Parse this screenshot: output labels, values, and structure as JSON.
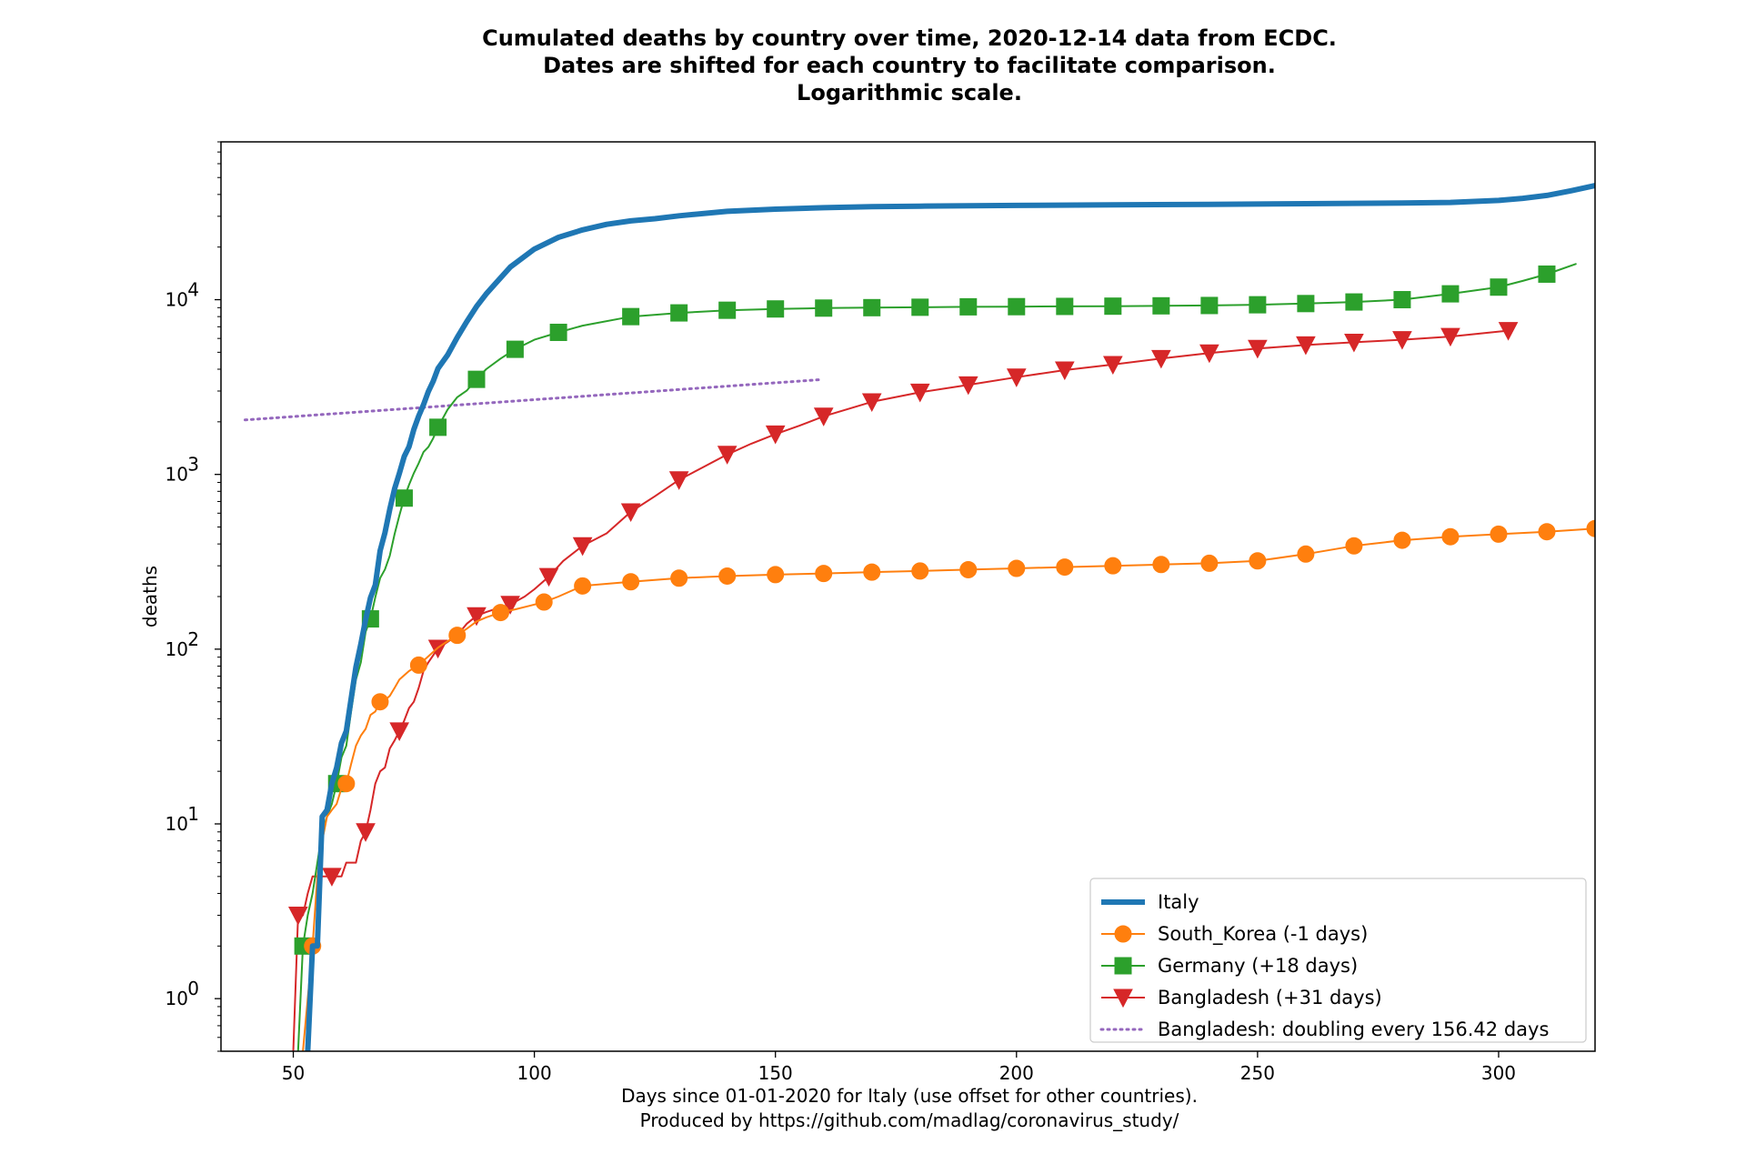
{
  "chart_data": {
    "type": "line",
    "title_lines": [
      "Cumulated deaths by country over time, 2020-12-14 data from ECDC.",
      "Dates are shifted for each country to facilitate comparison.",
      "Logarithmic scale."
    ],
    "xlabel_lines": [
      "Days since 01-01-2020 for Italy (use offset for other countries).",
      "Produced by https://github.com/madlag/coronavirus_study/"
    ],
    "ylabel": "deaths",
    "yscale": "log",
    "xlim": [
      35,
      320
    ],
    "ylim": [
      0.5,
      80000
    ],
    "xticks": [
      50,
      100,
      150,
      200,
      250,
      300
    ],
    "yticks": [
      {
        "value": 1,
        "label": "10^0"
      },
      {
        "value": 10,
        "label": "10^1"
      },
      {
        "value": 100,
        "label": "10^2"
      },
      {
        "value": 1000,
        "label": "10^3"
      },
      {
        "value": 10000,
        "label": "10^4"
      }
    ],
    "grid": false,
    "legend_position": "lower-right",
    "series": [
      {
        "name": "Italy",
        "color": "#1f77b4",
        "style": "thick-line",
        "marker": "none",
        "x": [
          53,
          54,
          55,
          56,
          57,
          58,
          59,
          60,
          61,
          62,
          63,
          64,
          65,
          66,
          67,
          68,
          69,
          70,
          71,
          72,
          73,
          74,
          75,
          76,
          77,
          78,
          79,
          80,
          82,
          84,
          86,
          88,
          90,
          92,
          95,
          100,
          105,
          110,
          115,
          120,
          125,
          130,
          140,
          150,
          160,
          170,
          180,
          200,
          220,
          240,
          260,
          280,
          290,
          300,
          305,
          310,
          315,
          320
        ],
        "y": [
          0.5,
          2,
          2,
          11,
          12,
          17,
          21,
          29,
          34,
          52,
          79,
          107,
          148,
          197,
          233,
          366,
          463,
          631,
          827,
          1016,
          1266,
          1441,
          1809,
          2158,
          2503,
          2978,
          3405,
          4032,
          4825,
          6077,
          7503,
          9134,
          10779,
          12428,
          15362,
          19468,
          22745,
          25085,
          26977,
          28236,
          29079,
          30201,
          32007,
          32955,
          33601,
          34043,
          34301,
          34610,
          34899,
          35129,
          35427,
          35738,
          36000,
          37000,
          38000,
          39500,
          42000,
          45000
        ]
      },
      {
        "name": "South_Korea (-1 days)",
        "color": "#ff7f0e",
        "style": "thin-line",
        "marker": "circle",
        "x": [
          52,
          53,
          54,
          55,
          56,
          57,
          58,
          59,
          60,
          61,
          62,
          63,
          64,
          65,
          66,
          67,
          68,
          69,
          70,
          71,
          72,
          74,
          76,
          78,
          80,
          82,
          84,
          86,
          88,
          90,
          93,
          96,
          99,
          102,
          105,
          110,
          120,
          130,
          140,
          150,
          160,
          170,
          180,
          190,
          200,
          210,
          220,
          230,
          240,
          250,
          260,
          270,
          280,
          290,
          300,
          310,
          320
        ],
        "y": [
          0.5,
          1,
          2,
          5,
          8,
          11,
          12,
          13,
          16,
          17,
          22,
          28,
          32,
          35,
          42,
          44,
          50,
          51,
          54,
          60,
          67,
          75,
          81,
          91,
          102,
          111,
          120,
          131,
          144,
          152,
          162,
          169,
          177,
          186,
          200,
          230,
          243,
          255,
          262,
          267,
          271,
          276,
          280,
          285,
          290,
          295,
          300,
          305,
          310,
          320,
          350,
          390,
          420,
          440,
          455,
          470,
          490
        ]
      },
      {
        "name": "Germany (+18 days)",
        "color": "#2ca02c",
        "style": "thin-line",
        "marker": "square",
        "x": [
          51,
          52,
          53,
          54,
          55,
          56,
          57,
          58,
          59,
          60,
          61,
          62,
          63,
          64,
          65,
          66,
          67,
          68,
          69,
          70,
          71,
          72,
          73,
          74,
          75,
          76,
          77,
          78,
          79,
          80,
          82,
          84,
          86,
          88,
          90,
          93,
          96,
          100,
          105,
          110,
          120,
          130,
          140,
          150,
          160,
          170,
          180,
          190,
          200,
          210,
          220,
          230,
          240,
          250,
          260,
          270,
          280,
          290,
          300,
          305,
          310,
          316
        ],
        "y": [
          0.5,
          2,
          3,
          4,
          6,
          9,
          11,
          13,
          17,
          24,
          28,
          44,
          67,
          84,
          126,
          149,
          198,
          255,
          286,
          342,
          455,
          583,
          732,
          872,
          1017,
          1158,
          1342,
          1434,
          1607,
          1861,
          2349,
          2767,
          3022,
          3500,
          4000,
          4600,
          5200,
          5900,
          6500,
          7100,
          8000,
          8400,
          8700,
          8850,
          8950,
          9000,
          9050,
          9100,
          9120,
          9150,
          9180,
          9220,
          9260,
          9350,
          9500,
          9700,
          10000,
          10800,
          11800,
          12800,
          14000,
          16000
        ]
      },
      {
        "name": "Bangladesh (+31 days)",
        "color": "#d62728",
        "style": "thin-line",
        "marker": "triangle-down",
        "x": [
          50,
          51,
          52,
          53,
          54,
          55,
          56,
          57,
          58,
          59,
          60,
          61,
          62,
          63,
          64,
          65,
          66,
          67,
          68,
          69,
          70,
          71,
          72,
          73,
          74,
          75,
          76,
          77,
          78,
          80,
          82,
          84,
          86,
          88,
          90,
          92,
          95,
          98,
          100,
          103,
          106,
          110,
          115,
          120,
          125,
          130,
          135,
          140,
          145,
          150,
          155,
          160,
          170,
          180,
          190,
          200,
          210,
          220,
          230,
          240,
          250,
          260,
          270,
          280,
          290,
          302
        ],
        "y": [
          0.5,
          3,
          3,
          4,
          5,
          5,
          5,
          5,
          5,
          5,
          5,
          6,
          6,
          6,
          8,
          9,
          12,
          17,
          20,
          21,
          27,
          30,
          34,
          39,
          46,
          50,
          60,
          75,
          84,
          101,
          110,
          120,
          140,
          155,
          163,
          170,
          180,
          200,
          220,
          260,
          320,
          390,
          460,
          610,
          750,
          930,
          1100,
          1300,
          1500,
          1700,
          1900,
          2150,
          2600,
          2950,
          3250,
          3600,
          3950,
          4250,
          4600,
          4950,
          5250,
          5500,
          5700,
          5900,
          6150,
          6650
        ]
      },
      {
        "name": "Bangladesh: doubling every 156.42 days",
        "color": "#9467bd",
        "style": "dotted",
        "marker": "none",
        "x": [
          40,
          159
        ],
        "y": [
          2050,
          3480
        ]
      }
    ]
  }
}
